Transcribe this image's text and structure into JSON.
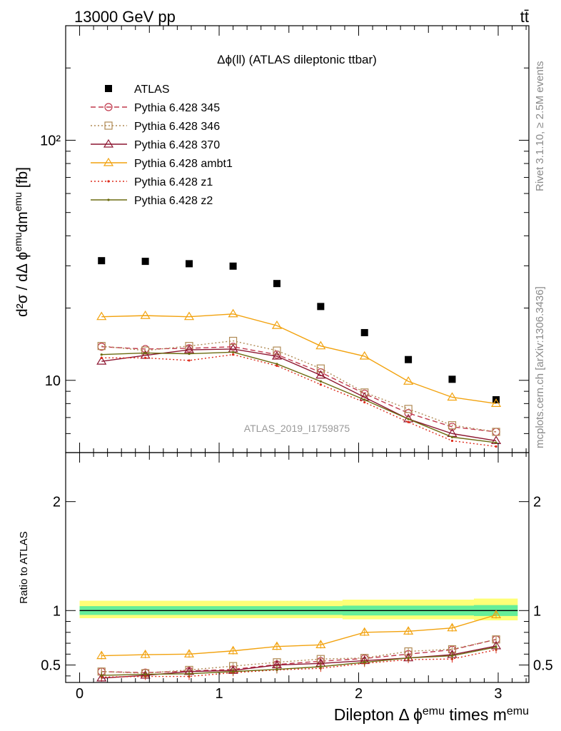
{
  "header": {
    "energy_label": "13000 GeV pp",
    "process_label": "tt̄"
  },
  "side_labels": {
    "rivet": "Rivet 3.1.10, ≥ 2.5M events",
    "mcplots": "mcplots.cern.ch [arXiv:1306.3436]"
  },
  "chart_data": [
    {
      "type": "scatter",
      "title": "Δϕ(ll) (ATLAS dileptonic ttbar)",
      "watermark": "ATLAS_2019_I1759875",
      "ylabel": "d²σ / dΔ ϕ^{emu}dm^{emu} [fb]",
      "yscale": "log",
      "ylim": [
        5.0,
        300
      ],
      "xlim": [
        -0.1,
        3.22
      ],
      "ytick_labels": [
        "10",
        "10²"
      ],
      "legend_position": "top-left",
      "x": [
        0.157,
        0.471,
        0.785,
        1.1,
        1.414,
        1.728,
        2.042,
        2.356,
        2.67,
        2.985
      ],
      "series": [
        {
          "name": "ATLAS",
          "color": "#000000",
          "marker": "square",
          "values": [
            31.5,
            31.3,
            30.6,
            29.9,
            25.3,
            20.3,
            15.8,
            12.2,
            10.1,
            8.3
          ]
        },
        {
          "name": "Pythia 6.428 345",
          "color": "#c0384c",
          "marker": "circle",
          "dash": "7,4",
          "values": [
            13.8,
            13.5,
            13.6,
            13.8,
            12.8,
            10.8,
            8.8,
            7.3,
            6.4,
            6.1
          ]
        },
        {
          "name": "Pythia 6.428 346",
          "color": "#b08a54",
          "marker": "square-open",
          "dash": "2,3",
          "values": [
            13.9,
            13.3,
            13.9,
            14.6,
            13.3,
            11.2,
            8.9,
            7.6,
            6.5,
            6.1
          ]
        },
        {
          "name": "Pythia 6.428 370",
          "color": "#8c1530",
          "marker": "triangle",
          "dash": "",
          "values": [
            12.0,
            12.7,
            13.4,
            13.5,
            12.6,
            10.5,
            8.5,
            6.9,
            6.0,
            5.6
          ]
        },
        {
          "name": "Pythia 6.428 ambt1",
          "color": "#f2a20e",
          "marker": "triangle",
          "dash": "",
          "values": [
            18.4,
            18.6,
            18.4,
            18.9,
            16.9,
            13.9,
            12.6,
            9.9,
            8.5,
            8.0
          ]
        },
        {
          "name": "Pythia 6.428 z1",
          "color": "#dd2a1a",
          "marker": "dot",
          "dash": "2,3",
          "values": [
            12.4,
            12.4,
            12.1,
            12.8,
            11.5,
            9.6,
            8.1,
            6.7,
            5.6,
            5.3
          ]
        },
        {
          "name": "Pythia 6.428 z2",
          "color": "#6b6b10",
          "marker": "dot",
          "dash": "",
          "values": [
            12.8,
            13.0,
            12.9,
            13.1,
            11.7,
            9.9,
            8.3,
            6.9,
            5.8,
            5.5
          ]
        }
      ]
    },
    {
      "type": "line",
      "xlabel": "Dilepton Δ ϕ^{emu} times m^{emu}",
      "ylabel": "Ratio to ATLAS",
      "ylim": [
        0.34,
        2.45
      ],
      "xlim": [
        -0.1,
        3.22
      ],
      "ytick_labels": [
        "0.5",
        "1",
        "2"
      ],
      "xtick_labels": [
        "0",
        "1",
        "2",
        "3"
      ],
      "band_color_outer": "#ffff77",
      "band_color_inner": "#66ee99",
      "band_outer": [
        [
          0.93,
          1.09
        ],
        [
          0.93,
          1.09
        ],
        [
          0.93,
          1.09
        ],
        [
          0.93,
          1.09
        ],
        [
          0.93,
          1.09
        ],
        [
          0.93,
          1.09
        ],
        [
          0.92,
          1.1
        ],
        [
          0.92,
          1.1
        ],
        [
          0.92,
          1.1
        ],
        [
          0.91,
          1.11
        ]
      ],
      "band_inner": [
        [
          0.96,
          1.04
        ],
        [
          0.96,
          1.04
        ],
        [
          0.96,
          1.04
        ],
        [
          0.96,
          1.04
        ],
        [
          0.96,
          1.04
        ],
        [
          0.96,
          1.04
        ],
        [
          0.955,
          1.045
        ],
        [
          0.955,
          1.045
        ],
        [
          0.955,
          1.045
        ],
        [
          0.95,
          1.05
        ]
      ],
      "series": [
        {
          "name": "Pythia 6.428 345",
          "values": [
            0.44,
            0.43,
            0.445,
            0.46,
            0.505,
            0.535,
            0.56,
            0.6,
            0.64,
            0.735
          ]
        },
        {
          "name": "Pythia 6.428 346",
          "values": [
            0.44,
            0.425,
            0.455,
            0.49,
            0.525,
            0.555,
            0.565,
            0.625,
            0.645,
            0.735
          ]
        },
        {
          "name": "Pythia 6.428 370",
          "values": [
            0.38,
            0.405,
            0.44,
            0.45,
            0.5,
            0.515,
            0.54,
            0.565,
            0.595,
            0.675
          ]
        },
        {
          "name": "Pythia 6.428 ambt1",
          "values": [
            0.585,
            0.595,
            0.6,
            0.63,
            0.67,
            0.685,
            0.8,
            0.81,
            0.84,
            0.96
          ]
        },
        {
          "name": "Pythia 6.428 z1",
          "values": [
            0.39,
            0.395,
            0.395,
            0.43,
            0.455,
            0.47,
            0.515,
            0.55,
            0.555,
            0.64
          ]
        },
        {
          "name": "Pythia 6.428 z2",
          "values": [
            0.405,
            0.415,
            0.42,
            0.44,
            0.46,
            0.485,
            0.525,
            0.565,
            0.585,
            0.665
          ]
        }
      ]
    }
  ]
}
